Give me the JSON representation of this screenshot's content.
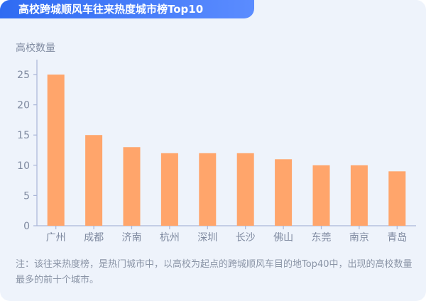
{
  "page": {
    "title": "高校跨城顺风车往来热度城市榜Top10",
    "note": "注：该往来热度榜，是热门城市中，以高校为起点的跨城顺风车目的地Top40中，出现的高校数量最多的前十个城市。"
  },
  "colors": {
    "bar": "#ffa56b",
    "axis": "#aab6d8",
    "tick_text": "#7f8aa0",
    "title_gradient_start": "#2f6bf2",
    "title_gradient_end": "#5b8cff"
  },
  "chart_data": {
    "type": "bar",
    "title": "高校跨城顺风车往来热度城市榜Top10",
    "ylabel": "高校数量",
    "xlabel": "",
    "categories": [
      "广州",
      "成都",
      "济南",
      "杭州",
      "深圳",
      "长沙",
      "佛山",
      "东莞",
      "南京",
      "青岛"
    ],
    "values": [
      25,
      15,
      13,
      12,
      12,
      12,
      11,
      10,
      10,
      9
    ],
    "ylim": [
      0,
      27
    ],
    "yticks": [
      0,
      5,
      10,
      15,
      20,
      25
    ],
    "grid": false,
    "legend": "none"
  }
}
